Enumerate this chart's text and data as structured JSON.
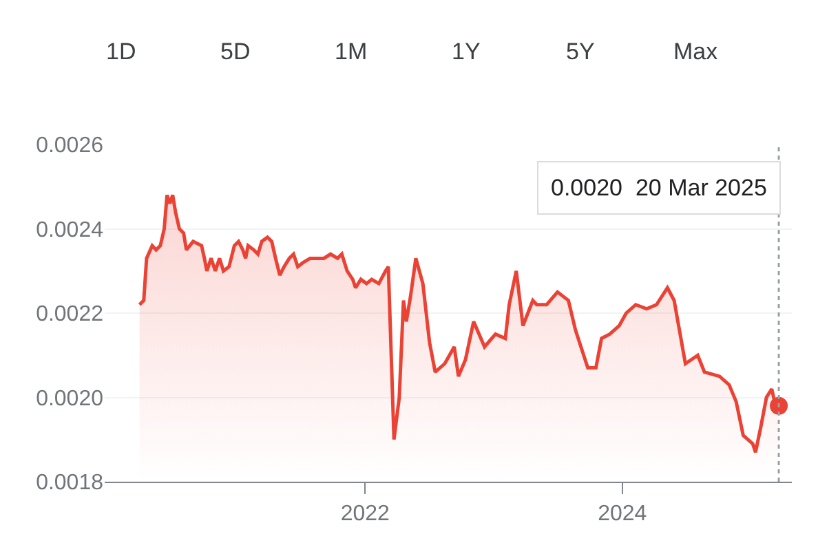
{
  "chart_data": {
    "type": "area",
    "annotations": [
      "1D",
      "5D",
      "1M",
      "1Y",
      "5Y",
      "Max",
      "0.0020  20 Mar 2025"
    ],
    "series": [
      {
        "color": "#ea4335",
        "x": [
          "2020-04-01",
          "2020-04-13",
          "2020-04-21",
          "2020-05-07",
          "2020-05-18",
          "2020-05-30",
          "2020-06-10",
          "2020-06-18",
          "2020-06-26",
          "2020-07-04",
          "2020-07-12",
          "2020-07-23",
          "2020-08-04",
          "2020-08-12",
          "2020-08-31",
          "2020-09-24",
          "2020-10-02",
          "2020-10-09",
          "2020-10-21",
          "2020-11-02",
          "2020-11-14",
          "2020-11-25",
          "2020-12-11",
          "2020-12-26",
          "2021-01-07",
          "2021-01-19",
          "2021-01-27",
          "2021-02-03",
          "2021-02-19",
          "2021-03-03",
          "2021-03-14",
          "2021-03-30",
          "2021-04-11",
          "2021-04-22",
          "2021-05-04",
          "2021-05-16",
          "2021-05-31",
          "2021-06-12",
          "2021-06-24",
          "2021-07-09",
          "2021-07-29",
          "2021-08-17",
          "2021-09-06",
          "2021-09-25",
          "2021-10-15",
          "2021-10-27",
          "2021-11-11",
          "2021-11-27",
          "2021-12-05",
          "2021-12-20",
          "2022-01-05",
          "2022-01-20",
          "2022-02-09",
          "2022-02-28",
          "2022-03-08",
          "2022-03-24",
          "2022-04-08",
          "2022-04-20",
          "2022-04-28",
          "2022-05-10",
          "2022-05-25",
          "2022-06-14",
          "2022-07-03",
          "2022-07-19",
          "2022-08-15",
          "2022-09-11",
          "2022-09-23",
          "2022-10-13",
          "2022-11-05",
          "2022-12-06",
          "2023-01-06",
          "2023-02-03",
          "2023-02-14",
          "2023-03-06",
          "2023-03-25",
          "2023-04-22",
          "2023-05-03",
          "2023-05-31",
          "2023-07-01",
          "2023-08-01",
          "2023-08-21",
          "2023-09-25",
          "2023-10-18",
          "2023-11-03",
          "2023-11-26",
          "2023-12-23",
          "2024-01-12",
          "2024-02-08",
          "2024-03-10",
          "2024-04-07",
          "2024-05-08",
          "2024-05-27",
          "2024-06-28",
          "2024-08-02",
          "2024-08-21",
          "2024-10-03",
          "2024-10-30",
          "2024-11-19",
          "2024-12-09",
          "2025-01-05",
          "2025-01-13",
          "2025-01-28",
          "2025-02-13",
          "2025-02-28",
          "2025-03-08",
          "2025-03-20"
        ],
        "values": [
          0.00222,
          0.00223,
          0.00233,
          0.00236,
          0.00235,
          0.00236,
          0.0024,
          0.00248,
          0.00246,
          0.00248,
          0.00244,
          0.0024,
          0.00239,
          0.00235,
          0.00237,
          0.00236,
          0.00233,
          0.0023,
          0.00233,
          0.0023,
          0.00233,
          0.0023,
          0.00231,
          0.00236,
          0.00237,
          0.00235,
          0.00233,
          0.00236,
          0.00235,
          0.00234,
          0.00237,
          0.00238,
          0.00237,
          0.00233,
          0.00229,
          0.00231,
          0.00233,
          0.00234,
          0.00231,
          0.00232,
          0.00233,
          0.00233,
          0.00233,
          0.00234,
          0.00233,
          0.00234,
          0.0023,
          0.00228,
          0.00226,
          0.00228,
          0.00227,
          0.00228,
          0.00227,
          0.0023,
          0.00231,
          0.0019,
          0.002,
          0.00223,
          0.00218,
          0.00224,
          0.00233,
          0.00227,
          0.00213,
          0.00206,
          0.00208,
          0.00212,
          0.00205,
          0.00209,
          0.00218,
          0.00212,
          0.00215,
          0.00214,
          0.00222,
          0.0023,
          0.00217,
          0.00223,
          0.00222,
          0.00222,
          0.00225,
          0.00223,
          0.00216,
          0.00207,
          0.00207,
          0.00214,
          0.00215,
          0.00217,
          0.0022,
          0.00222,
          0.00221,
          0.00222,
          0.00226,
          0.00223,
          0.00208,
          0.0021,
          0.00206,
          0.00205,
          0.00203,
          0.00199,
          0.00191,
          0.00189,
          0.00187,
          0.00193,
          0.002,
          0.00202,
          0.00199,
          0.00198
        ]
      },
      {
        "type": "scatter",
        "color": "#ea4335",
        "marker": "circle",
        "x": [
          "2025-03-20"
        ],
        "values": [
          0.00198
        ]
      }
    ],
    "xlim": [
      "2019-12-24",
      "2025-04-26"
    ],
    "xticks": [
      {
        "value": "2022-01-01",
        "label": "2022"
      },
      {
        "value": "2024-01-01",
        "label": "2024"
      }
    ],
    "ylim": [
      0.0018,
      0.0026
    ],
    "yticks": [
      {
        "value": 0.0018,
        "label": "0.0018"
      },
      {
        "value": 0.002,
        "label": "0.0020"
      },
      {
        "value": 0.0022,
        "label": "0.0022"
      },
      {
        "value": 0.0024,
        "label": "0.0024"
      },
      {
        "value": 0.0026,
        "label": "0.0026"
      }
    ],
    "grid": "y",
    "ref_lines": [
      {
        "axis": "x",
        "value": "2025-03-20",
        "label": null,
        "color": "#9aa0a6",
        "line_style": "dotted"
      }
    ]
  }
}
